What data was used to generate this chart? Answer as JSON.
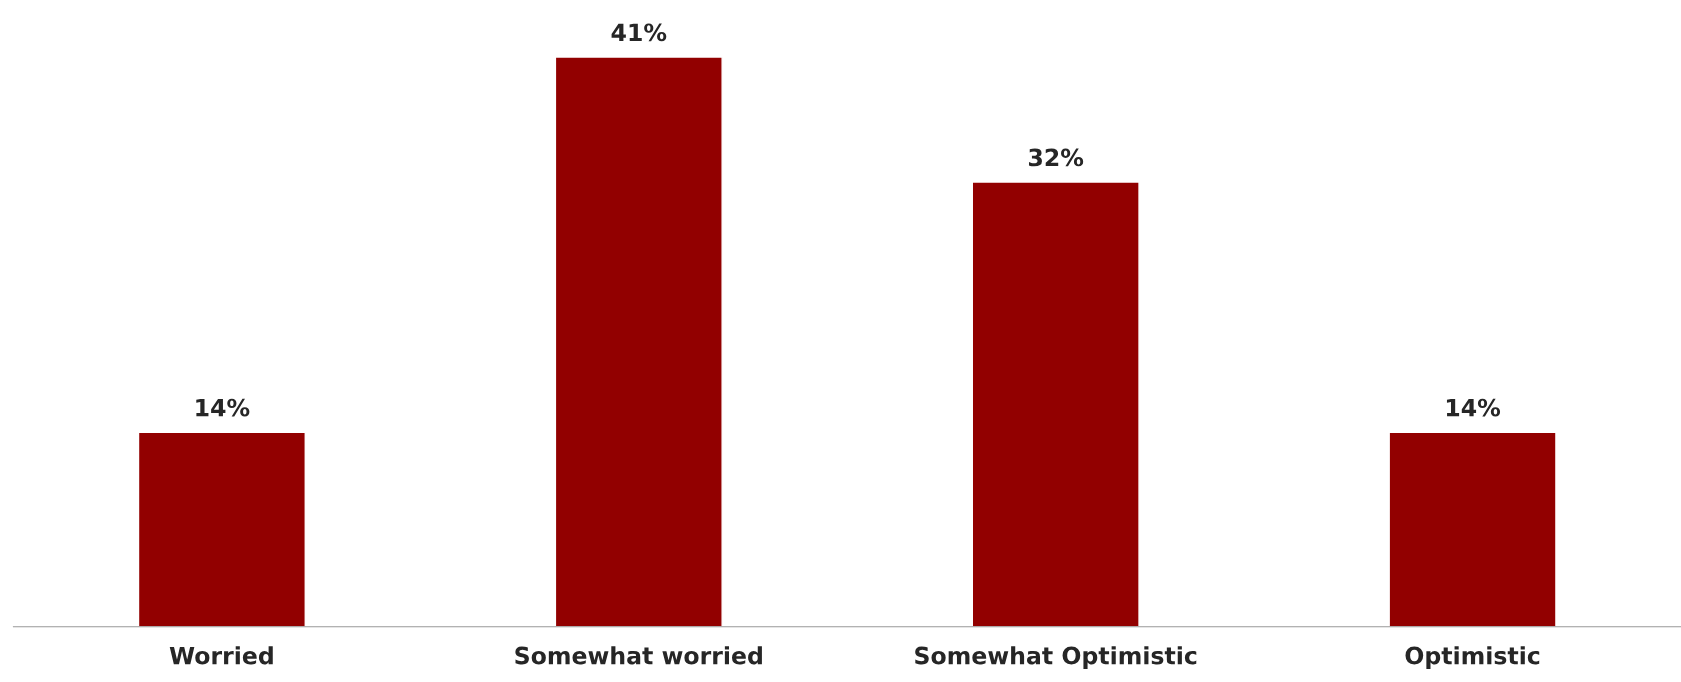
{
  "chart_data": {
    "type": "bar",
    "categories": [
      "Worried",
      "Somewhat worried",
      "Somewhat Optimistic",
      "Optimistic"
    ],
    "values": [
      14,
      41,
      32,
      14
    ],
    "value_labels": [
      "14%",
      "41%",
      "32%",
      "14%"
    ],
    "color": "#920000",
    "grid": false,
    "legend": false
  }
}
